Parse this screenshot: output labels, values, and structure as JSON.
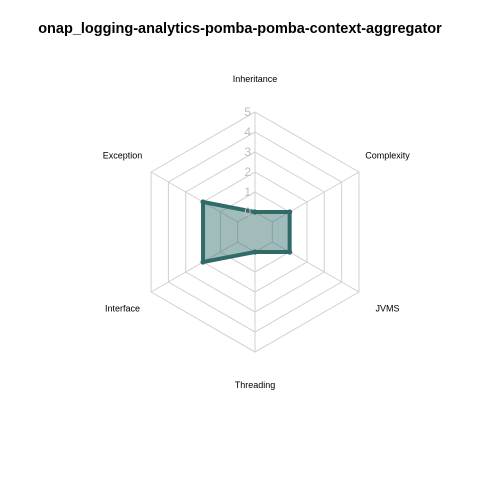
{
  "chart_data": {
    "type": "radar",
    "title": "onap_logging-analytics-pomba-pomba-context-aggregator",
    "axes": [
      "Inheritance",
      "Complexity",
      "JVMS",
      "Threading",
      "Interface",
      "Exception"
    ],
    "range": [
      0,
      5
    ],
    "ticks": [
      "0",
      "1",
      "2",
      "3",
      "4",
      "5"
    ],
    "series": [
      {
        "values": [
          0,
          1,
          1,
          0,
          2,
          2
        ],
        "color": "#2f6b68",
        "fill": "#2f6b68",
        "fill_opacity": 0.45
      }
    ],
    "grid": true
  }
}
